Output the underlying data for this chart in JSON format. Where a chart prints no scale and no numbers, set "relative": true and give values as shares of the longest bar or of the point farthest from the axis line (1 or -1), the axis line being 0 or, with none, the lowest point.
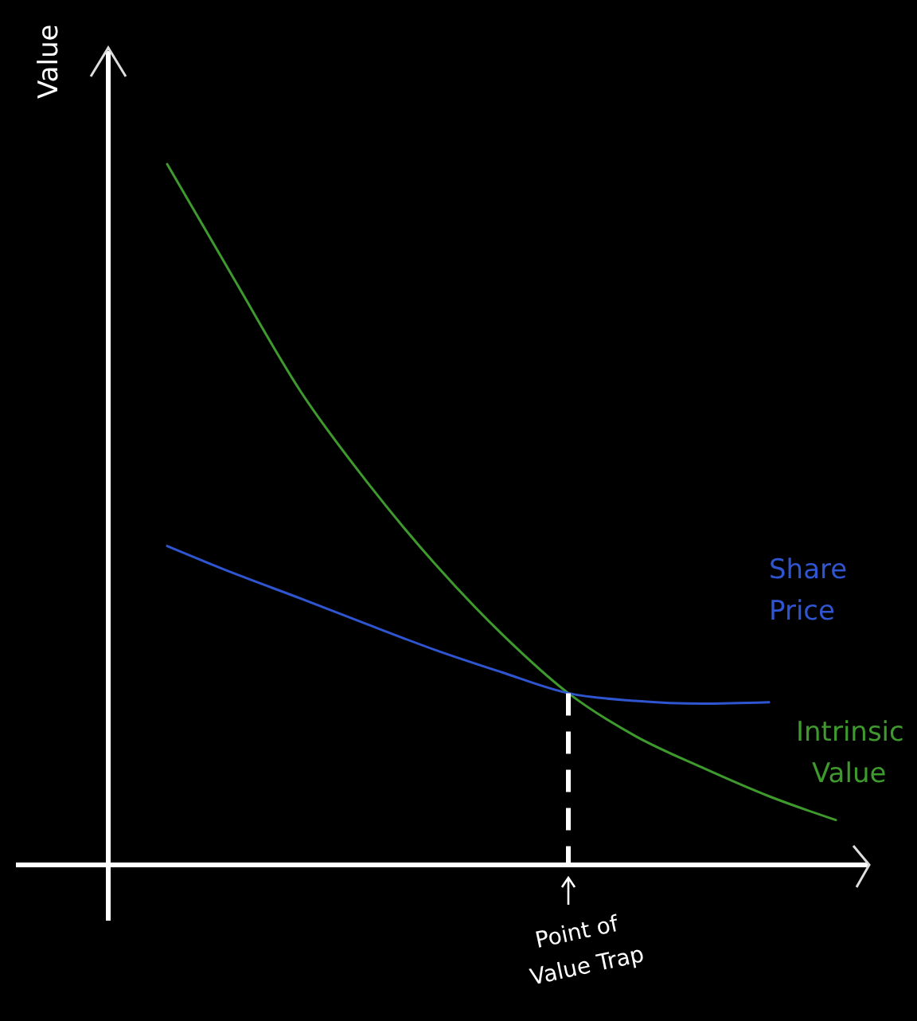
{
  "chart_data": {
    "type": "line",
    "relative": true,
    "ylabel": "Value",
    "categories": [
      null,
      null,
      null,
      null,
      null,
      null,
      null,
      null,
      null,
      null,
      null
    ],
    "series": [
      {
        "name": "Intrinsic Value",
        "color": "#3f9a2e",
        "values": [
          1,
          0.836,
          0.675,
          0.545,
          0.43,
          0.33,
          0.245,
          0.184,
          0.139,
          0.098,
          0.064
        ]
      },
      {
        "name": "Share Price",
        "color": "#2f55d0",
        "values": [
          0.455,
          0.416,
          0.38,
          0.343,
          0.307,
          0.275,
          0.245,
          0.234,
          0.23,
          0.232,
          null
        ]
      }
    ],
    "annotations": [
      "Point of Value Trap"
    ],
    "legend": false,
    "marker": "none",
    "line_style": "solid"
  }
}
